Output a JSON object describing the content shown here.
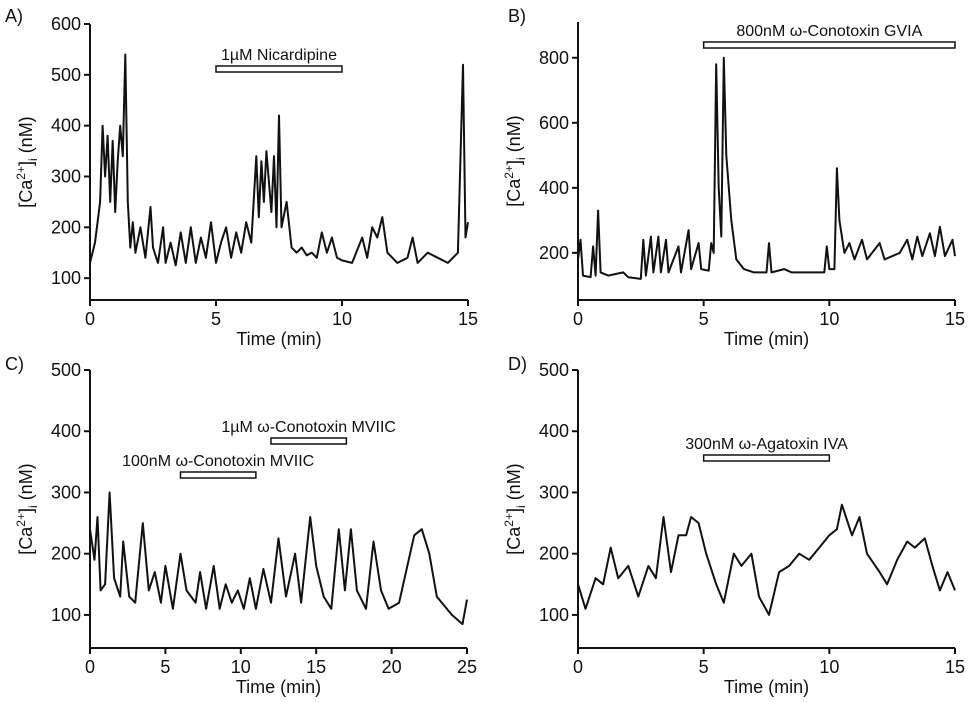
{
  "chart_data": [
    {
      "type": "line",
      "panel_label": "A)",
      "x_label": "Time (min)",
      "y_label": [
        "[Ca",
        "2+",
        "]",
        "i",
        " (nM)"
      ],
      "color": "#111111",
      "xlim": [
        0,
        15
      ],
      "xticks": [
        0,
        5,
        10,
        15
      ],
      "ylim": [
        57,
        600
      ],
      "yticks": [
        100,
        200,
        300,
        400,
        500,
        600
      ],
      "annotations": [
        {
          "text": "1µM Nicardipine",
          "x0": 5,
          "x1": 10
        }
      ],
      "x": [
        0,
        0.2,
        0.4,
        0.5,
        0.6,
        0.7,
        0.8,
        0.9,
        1.0,
        1.1,
        1.2,
        1.3,
        1.4,
        1.5,
        1.6,
        1.7,
        1.8,
        2.0,
        2.2,
        2.4,
        2.5,
        2.7,
        2.9,
        3.0,
        3.2,
        3.4,
        3.6,
        3.8,
        4.0,
        4.2,
        4.4,
        4.6,
        4.8,
        5.0,
        5.2,
        5.4,
        5.6,
        5.8,
        6.0,
        6.2,
        6.4,
        6.6,
        6.7,
        6.8,
        6.9,
        7.0,
        7.2,
        7.3,
        7.4,
        7.5,
        7.6,
        7.8,
        8.0,
        8.2,
        8.4,
        8.6,
        8.8,
        9.0,
        9.2,
        9.4,
        9.6,
        9.8,
        10.0,
        10.4,
        10.8,
        11.0,
        11.2,
        11.4,
        11.6,
        11.8,
        12.2,
        12.6,
        12.8,
        13.0,
        13.4,
        13.8,
        14.2,
        14.6,
        14.8,
        14.9,
        15.0
      ],
      "values": [
        130,
        170,
        250,
        400,
        300,
        380,
        250,
        370,
        230,
        330,
        400,
        340,
        540,
        250,
        160,
        210,
        150,
        200,
        140,
        240,
        160,
        130,
        200,
        130,
        170,
        125,
        190,
        130,
        200,
        130,
        180,
        140,
        210,
        130,
        170,
        200,
        140,
        190,
        150,
        210,
        170,
        340,
        220,
        330,
        250,
        350,
        230,
        340,
        200,
        420,
        200,
        250,
        160,
        150,
        160,
        145,
        150,
        140,
        190,
        150,
        180,
        140,
        135,
        130,
        180,
        140,
        200,
        180,
        220,
        150,
        130,
        140,
        180,
        130,
        150,
        140,
        130,
        150,
        520,
        180,
        210
      ]
    },
    {
      "type": "line",
      "panel_label": "B)",
      "x_label": "Time (min)",
      "y_label": [
        "[Ca",
        "2+",
        "]",
        "i",
        " (nM)"
      ],
      "color": "#111111",
      "xlim": [
        0,
        15
      ],
      "xticks": [
        0,
        5,
        10,
        15
      ],
      "ylim": [
        55,
        910
      ],
      "yticks": [
        200,
        400,
        600,
        800
      ],
      "annotations": [
        {
          "text": "800nM ω-Conotoxin GVIA",
          "x0": 5,
          "x1": 15
        }
      ],
      "x": [
        0,
        0.1,
        0.2,
        0.5,
        0.6,
        0.7,
        0.8,
        0.9,
        1.2,
        1.8,
        2.0,
        2.5,
        2.6,
        2.7,
        2.9,
        3.0,
        3.2,
        3.3,
        3.5,
        3.6,
        4.0,
        4.1,
        4.4,
        4.5,
        4.8,
        4.9,
        5.2,
        5.3,
        5.4,
        5.5,
        5.6,
        5.7,
        5.8,
        5.9,
        6.1,
        6.3,
        6.6,
        7.0,
        7.5,
        7.6,
        7.7,
        8.2,
        8.5,
        9.8,
        9.9,
        10.0,
        10.2,
        10.3,
        10.4,
        10.6,
        10.8,
        11.0,
        11.3,
        11.5,
        12.0,
        12.2,
        12.8,
        13.1,
        13.3,
        13.5,
        13.7,
        14.0,
        14.2,
        14.4,
        14.6,
        14.9,
        15.0
      ],
      "values": [
        180,
        240,
        130,
        125,
        220,
        130,
        330,
        140,
        130,
        140,
        125,
        120,
        240,
        130,
        250,
        140,
        250,
        140,
        240,
        140,
        220,
        140,
        270,
        150,
        230,
        150,
        145,
        230,
        200,
        780,
        400,
        250,
        800,
        500,
        300,
        180,
        150,
        140,
        140,
        230,
        140,
        150,
        140,
        140,
        220,
        150,
        150,
        460,
        300,
        200,
        230,
        180,
        240,
        180,
        230,
        180,
        200,
        240,
        180,
        250,
        190,
        260,
        190,
        280,
        190,
        240,
        190
      ]
    },
    {
      "type": "line",
      "panel_label": "C)",
      "x_label": "Time (min)",
      "y_label": [
        "[Ca",
        "2+",
        "]",
        "i",
        " (nM)"
      ],
      "color": "#111111",
      "xlim": [
        0,
        25
      ],
      "xticks": [
        0,
        5,
        10,
        15,
        20,
        25
      ],
      "ylim": [
        46,
        500
      ],
      "yticks": [
        100,
        200,
        300,
        400,
        500
      ],
      "annotations": [
        {
          "text": "100nM ω-Conotoxin MVIIC",
          "x0": 6,
          "x1": 11
        },
        {
          "text": "1µM ω-Conotoxin MVIIC",
          "x0": 12,
          "x1": 17
        }
      ],
      "x": [
        0,
        0.3,
        0.5,
        0.7,
        1.0,
        1.3,
        1.6,
        2.0,
        2.2,
        2.6,
        3.0,
        3.5,
        3.9,
        4.3,
        4.7,
        5.0,
        5.5,
        6.0,
        6.4,
        7.0,
        7.3,
        7.7,
        8.2,
        8.6,
        9.0,
        9.4,
        9.8,
        10.2,
        10.6,
        11.0,
        11.5,
        12.0,
        12.5,
        13.0,
        13.6,
        14.0,
        14.6,
        15.0,
        15.5,
        16.0,
        16.5,
        16.9,
        17.3,
        17.7,
        18.3,
        18.8,
        19.3,
        19.8,
        20.5,
        21.5,
        22.0,
        22.5,
        23.0,
        24.0,
        24.7,
        25.0
      ],
      "values": [
        240,
        190,
        260,
        140,
        150,
        300,
        160,
        130,
        220,
        130,
        120,
        250,
        140,
        170,
        120,
        180,
        110,
        200,
        140,
        120,
        170,
        110,
        180,
        110,
        150,
        120,
        140,
        110,
        160,
        110,
        175,
        120,
        225,
        130,
        200,
        120,
        260,
        180,
        130,
        110,
        240,
        140,
        240,
        140,
        110,
        220,
        140,
        110,
        120,
        230,
        240,
        200,
        130,
        100,
        85,
        125
      ]
    },
    {
      "type": "line",
      "panel_label": "D)",
      "x_label": "Time (min)",
      "y_label": [
        "[Ca",
        "2+",
        "]",
        "i",
        " (nM)"
      ],
      "color": "#111111",
      "xlim": [
        0,
        15
      ],
      "xticks": [
        0,
        5,
        10,
        15
      ],
      "ylim": [
        46,
        500
      ],
      "yticks": [
        100,
        200,
        300,
        400,
        500
      ],
      "annotations": [
        {
          "text": "300nM ω-Agatoxin IVA",
          "x0": 5,
          "x1": 10
        }
      ],
      "x": [
        0,
        0.3,
        0.7,
        1.0,
        1.3,
        1.6,
        2.0,
        2.4,
        2.8,
        3.1,
        3.4,
        3.7,
        4.0,
        4.3,
        4.5,
        4.8,
        5.1,
        5.5,
        5.8,
        6.2,
        6.5,
        6.9,
        7.2,
        7.6,
        8.0,
        8.4,
        8.8,
        9.2,
        9.6,
        10.0,
        10.3,
        10.5,
        10.9,
        11.2,
        11.5,
        12.0,
        12.3,
        12.7,
        13.1,
        13.4,
        13.8,
        14.1,
        14.4,
        14.7,
        15.0
      ],
      "values": [
        150,
        110,
        160,
        150,
        210,
        160,
        180,
        130,
        180,
        160,
        260,
        170,
        230,
        230,
        260,
        250,
        200,
        150,
        120,
        200,
        180,
        200,
        130,
        100,
        170,
        180,
        200,
        190,
        210,
        230,
        240,
        280,
        230,
        260,
        200,
        170,
        150,
        190,
        220,
        210,
        225,
        180,
        140,
        170,
        140
      ]
    }
  ]
}
